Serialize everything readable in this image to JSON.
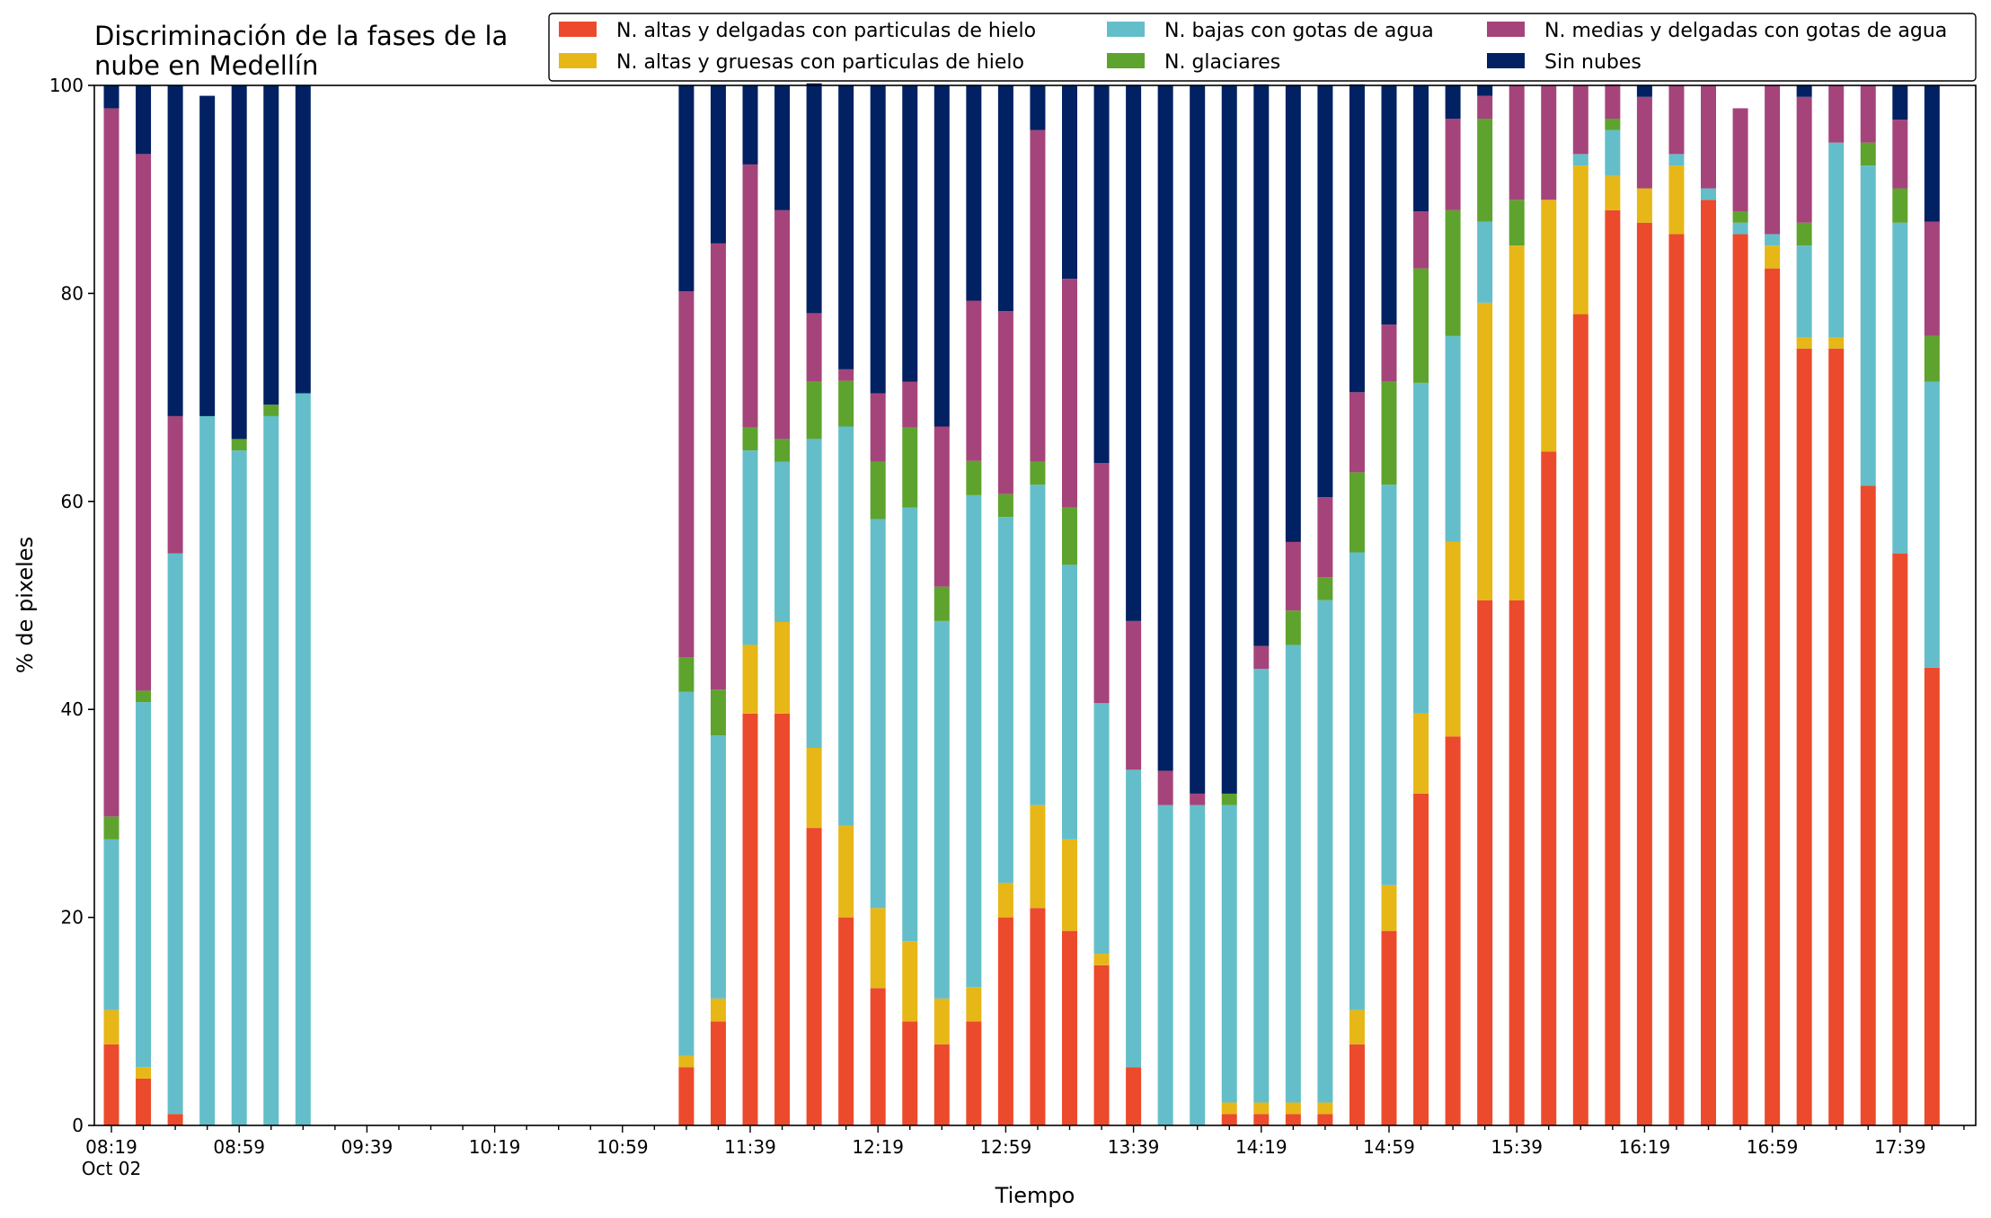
{
  "chart_data": {
    "type": "bar",
    "stacked": true,
    "title_lines": [
      "Discriminación de la fases de la",
      "nube en Medellín"
    ],
    "xlabel": "Tiempo",
    "ylabel": "% de pixeles",
    "ylim": [
      0,
      100
    ],
    "yticks": [
      "0",
      "20",
      "40",
      "60",
      "80",
      "100"
    ],
    "grid": false,
    "legend_position": "top-right",
    "x_start_label": "08:19",
    "x_date_label": "Oct 02",
    "x_tick_labels": [
      "08:19",
      "08:59",
      "09:39",
      "10:19",
      "10:59",
      "11:39",
      "12:19",
      "12:59",
      "13:39",
      "14:19",
      "14:59",
      "15:39",
      "16:19",
      "16:59",
      "17:39"
    ],
    "categories": [
      "08:19",
      "08:29",
      "08:39",
      "08:49",
      "08:59",
      "09:09",
      "09:19",
      "09:29",
      "09:39",
      "09:49",
      "09:59",
      "10:09",
      "10:19",
      "10:29",
      "10:39",
      "10:49",
      "10:59",
      "11:09",
      "11:19",
      "11:29",
      "11:39",
      "11:49",
      "11:59",
      "12:09",
      "12:19",
      "12:29",
      "12:39",
      "12:49",
      "12:59",
      "13:09",
      "13:19",
      "13:29",
      "13:39",
      "13:49",
      "13:59",
      "14:09",
      "14:19",
      "14:29",
      "14:39",
      "14:49",
      "14:59",
      "15:09",
      "15:19",
      "15:29",
      "15:39",
      "15:49",
      "15:59",
      "16:09",
      "16:19",
      "16:29",
      "16:39",
      "16:49",
      "16:59",
      "17:09",
      "17:19",
      "17:29",
      "17:39",
      "17:49"
    ],
    "series": [
      {
        "name": "N. altas y delgadas con particulas de hielo",
        "color": "#ec4a2c",
        "values": [
          7.8,
          4.5,
          1.1,
          0,
          0,
          0,
          0,
          null,
          null,
          null,
          null,
          null,
          null,
          null,
          null,
          null,
          null,
          null,
          5.6,
          10,
          39.6,
          39.6,
          28.6,
          20,
          13.2,
          10,
          7.8,
          10,
          20,
          20.9,
          18.7,
          15.4,
          5.6,
          0,
          0,
          1.1,
          1.1,
          1.1,
          1.1,
          7.8,
          18.7,
          31.9,
          37.4,
          50.5,
          50.5,
          64.8,
          78,
          88,
          86.8,
          85.7,
          89,
          85.7,
          82.4,
          74.7,
          74.7,
          61.5,
          55,
          44
        ]
      },
      {
        "name": "N. altas y gruesas con particulas de hielo",
        "color": "#e6b717",
        "values": [
          3.3,
          1.1,
          0,
          0,
          0,
          0,
          0,
          null,
          null,
          null,
          null,
          null,
          null,
          null,
          null,
          null,
          null,
          null,
          1.1,
          2.2,
          6.6,
          8.8,
          7.7,
          8.8,
          7.7,
          7.7,
          4.4,
          3.3,
          3.3,
          9.9,
          8.8,
          1.1,
          0,
          0,
          0,
          1.1,
          1.1,
          1.1,
          1.1,
          3.3,
          4.4,
          7.7,
          18.7,
          28.6,
          34.1,
          24.2,
          14.3,
          3.3,
          3.3,
          6.6,
          0,
          0,
          2.2,
          1.1,
          1.1,
          0,
          0,
          0
        ]
      },
      {
        "name": "N. bajas con gotas de agua",
        "color": "#64bec9",
        "values": [
          16.4,
          35.1,
          53.9,
          68.2,
          64.9,
          68.2,
          70.4,
          null,
          null,
          null,
          null,
          null,
          null,
          null,
          null,
          null,
          null,
          null,
          35,
          25.3,
          18.7,
          15.4,
          29.7,
          38.4,
          37.4,
          41.7,
          36.3,
          47.3,
          35.2,
          30.8,
          26.4,
          24.1,
          28.6,
          30.8,
          30.8,
          28.6,
          41.7,
          44,
          48.3,
          44,
          38.5,
          31.8,
          19.8,
          7.8,
          0,
          0,
          1.1,
          4.4,
          0,
          1.1,
          1.1,
          1.1,
          1.1,
          8.8,
          18.7,
          30.8,
          31.8,
          27.5
        ]
      },
      {
        "name": "N. glaciares",
        "color": "#5ea32e",
        "values": [
          2.2,
          1.1,
          0,
          0,
          1.1,
          1.1,
          0,
          null,
          null,
          null,
          null,
          null,
          null,
          null,
          null,
          null,
          null,
          null,
          3.3,
          4.4,
          2.2,
          2.2,
          5.5,
          4.4,
          5.5,
          7.7,
          3.3,
          3.3,
          2.2,
          2.2,
          5.5,
          0,
          0,
          0,
          0,
          1.1,
          0,
          3.3,
          2.2,
          7.7,
          9.9,
          11,
          12.1,
          9.9,
          4.4,
          0,
          0,
          1.1,
          0,
          0,
          0,
          1.1,
          0,
          2.2,
          0,
          2.2,
          3.3,
          4.4
        ]
      },
      {
        "name": "N. medias y delgadas con gotas de agua",
        "color": "#a5447a",
        "values": [
          68.1,
          51.6,
          13.2,
          0,
          0,
          0,
          0,
          null,
          null,
          null,
          null,
          null,
          null,
          null,
          null,
          null,
          null,
          null,
          35.2,
          42.9,
          25.3,
          22,
          6.6,
          1.1,
          6.6,
          4.4,
          15.4,
          15.4,
          17.6,
          31.9,
          22,
          23.1,
          14.3,
          3.3,
          1.1,
          0,
          2.2,
          6.6,
          7.7,
          7.7,
          5.5,
          5.5,
          8.8,
          2.2,
          11,
          11,
          6.6,
          3.3,
          8.8,
          6.6,
          9.9,
          9.9,
          14.3,
          12.1,
          5.5,
          5.5,
          6.6,
          11
        ]
      },
      {
        "name": "Sin nubes",
        "color": "#012162",
        "values": [
          2.2,
          6.6,
          31.8,
          30.8,
          34,
          30.7,
          29.6,
          null,
          null,
          null,
          null,
          null,
          null,
          null,
          null,
          null,
          null,
          null,
          19.8,
          15.2,
          7.6,
          12,
          22.1,
          27.3,
          29.6,
          28.5,
          32.8,
          20.7,
          21.7,
          4.3,
          18.6,
          36.3,
          51.5,
          65.9,
          68.1,
          68.1,
          54,
          43.9,
          39.6,
          29.6,
          23,
          12.1,
          3.2,
          1,
          0,
          0,
          0,
          0,
          1.1,
          0,
          0,
          0,
          0,
          1.1,
          0,
          0,
          3.3,
          13.1
        ]
      }
    ]
  }
}
